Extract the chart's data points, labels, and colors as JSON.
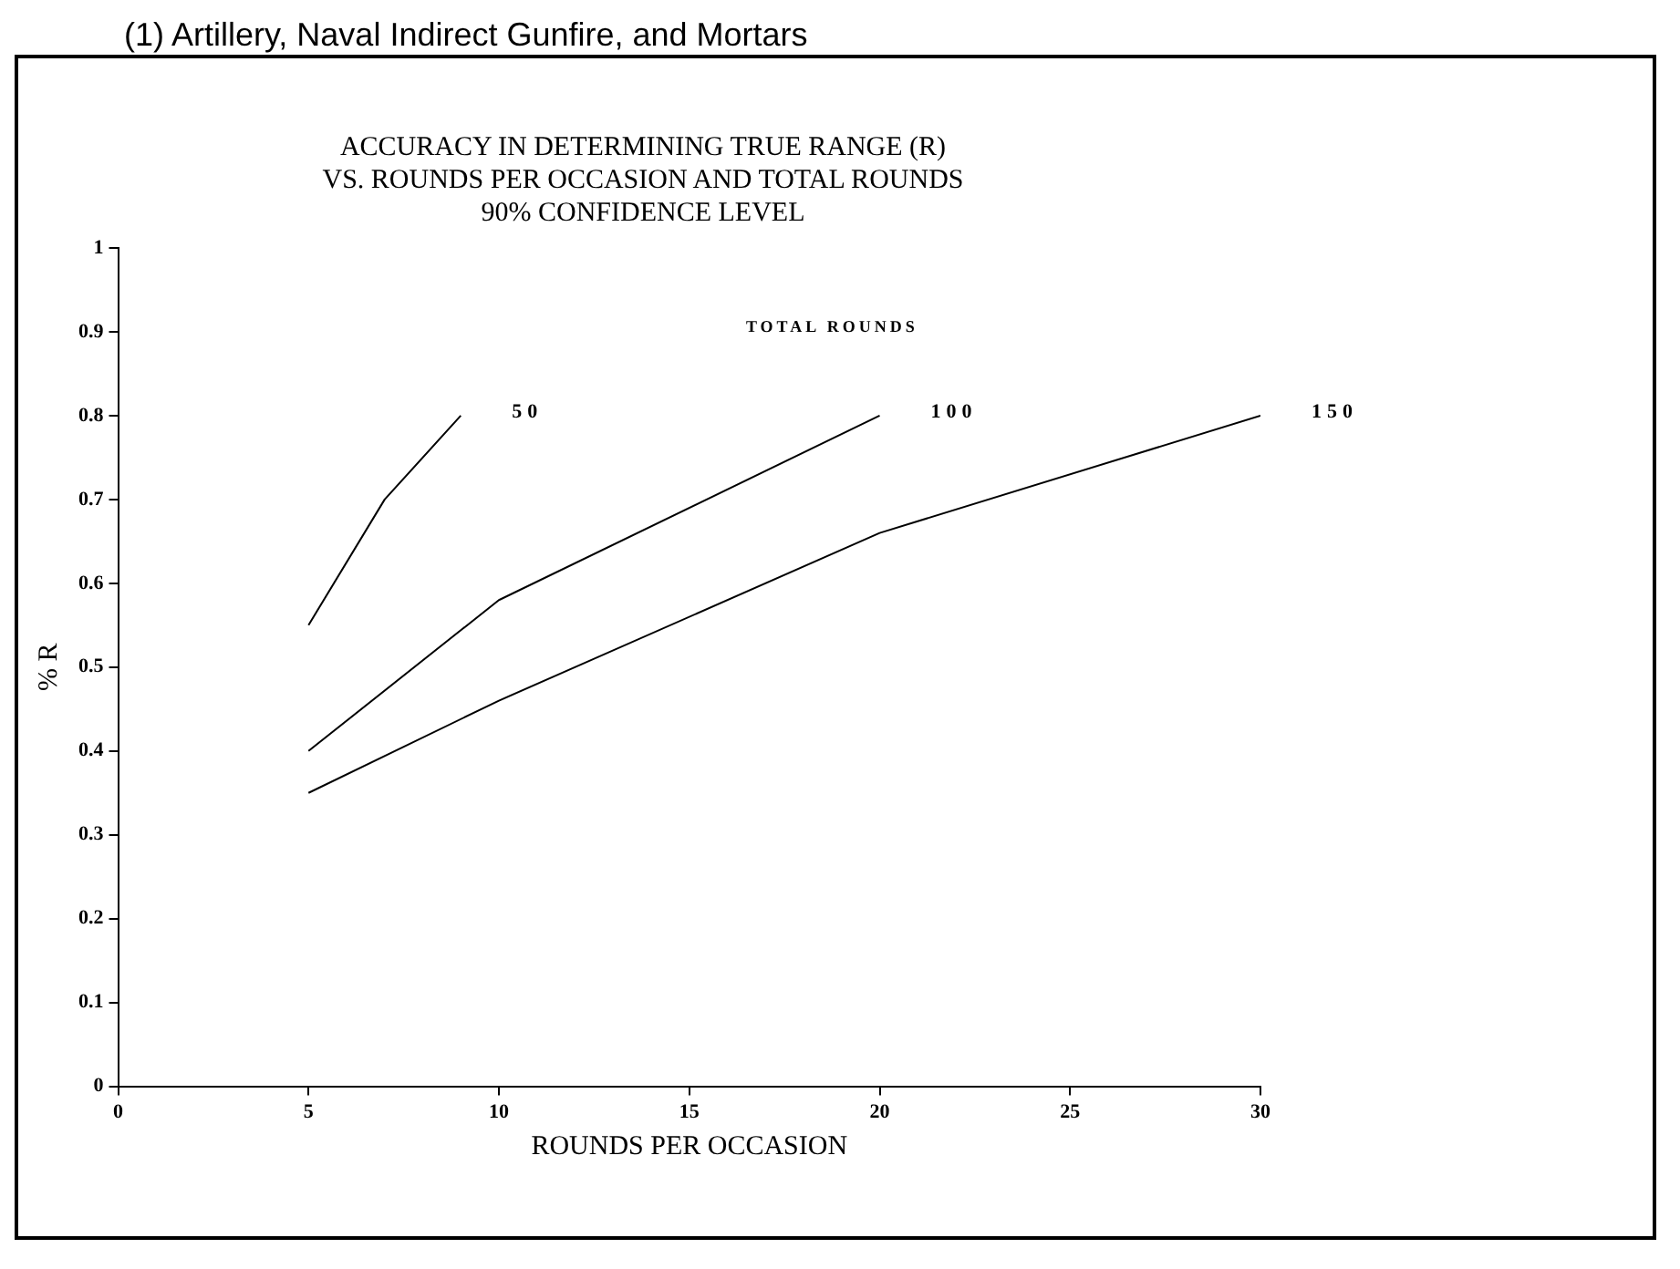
{
  "chart_data": {
    "type": "line",
    "title": "ACCURACY IN DETERMINING TRUE RANGE (R)\nVS. ROUNDS PER OCCASION AND TOTAL ROUNDS\n90% CONFIDENCE LEVEL",
    "xlabel": "ROUNDS PER OCCASION",
    "ylabel": "% R",
    "legend_title": "TOTAL ROUNDS",
    "annotations": [
      "(1) Artillery, Naval Indirect Gunfire, and Mortars"
    ],
    "series": [
      {
        "name": "50",
        "color": "#000000",
        "x": [
          5,
          7,
          9
        ],
        "values": [
          0.55,
          0.7,
          0.8
        ]
      },
      {
        "name": "100",
        "color": "#000000",
        "x": [
          5,
          10,
          20
        ],
        "values": [
          0.4,
          0.58,
          0.8
        ]
      },
      {
        "name": "150",
        "color": "#000000",
        "x": [
          5,
          10,
          20,
          30
        ],
        "values": [
          0.35,
          0.46,
          0.66,
          0.8
        ]
      }
    ],
    "xlim": [
      0,
      30
    ],
    "xticks": [
      0,
      5,
      10,
      15,
      20,
      25,
      30
    ],
    "ylim": [
      0,
      1
    ],
    "yticks": [
      0,
      0.1,
      0.2,
      0.3,
      0.4,
      0.5,
      0.6,
      0.7,
      0.8,
      0.9,
      1
    ],
    "grid": false,
    "legend": false,
    "marker": "none",
    "line_style": "solid"
  }
}
